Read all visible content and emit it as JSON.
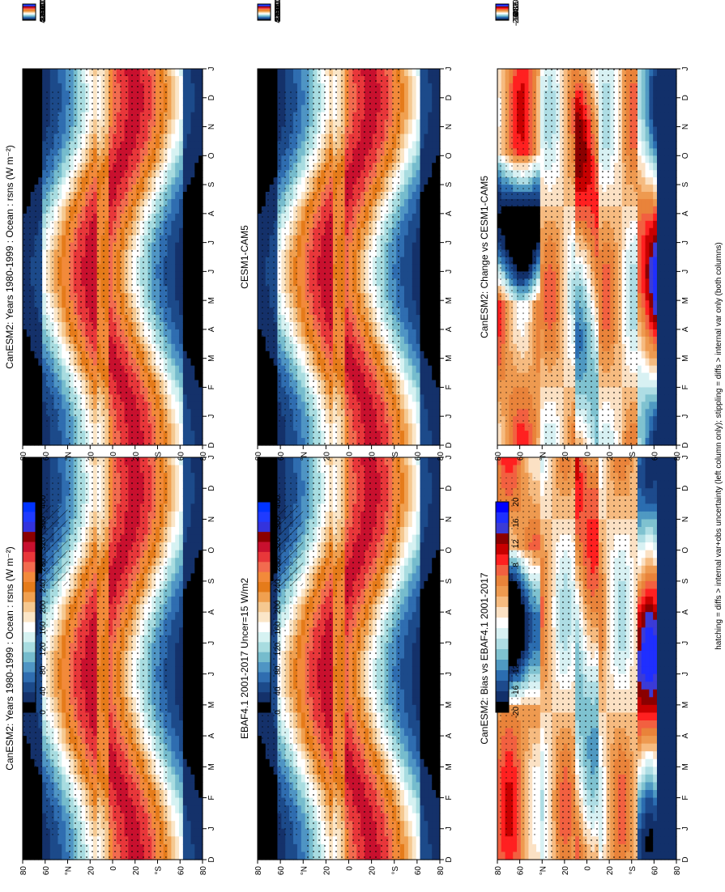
{
  "figure": {
    "footnote": "hatching = diffs > internal var+obs uncertainty (left column only); stippling = diffs > internal var only (both columns)"
  },
  "chart_data": [
    {
      "type": "heatmap",
      "title": "CanESM2: Years 1980-1999 : Ocean : rsns (W m⁻²)",
      "x_ticks": [
        "D",
        "J",
        "F",
        "M",
        "A",
        "M",
        "J",
        "J",
        "A",
        "S",
        "O",
        "N",
        "D",
        "J"
      ],
      "y_ticks": [
        "80",
        "60",
        "°N",
        "20",
        "0",
        "20",
        "°S",
        "60",
        "80"
      ],
      "colorbar": {
        "labels": [
          "400",
          "360",
          "320",
          "280",
          "240",
          "200",
          "160",
          "120",
          "80",
          "40",
          "0"
        ]
      },
      "overlays": [
        "stippling",
        "hatching"
      ]
    },
    {
      "type": "heatmap",
      "title": "CanESM2: Years 1980-1999 : Ocean : rsns (W m⁻²)",
      "x_ticks": [
        "D",
        "J",
        "F",
        "M",
        "A",
        "M",
        "J",
        "J",
        "A",
        "S",
        "O",
        "N",
        "D",
        "J"
      ],
      "y_ticks": [
        "80",
        "60",
        "°N",
        "20",
        "0",
        "20",
        "°S",
        "60",
        "80"
      ],
      "colorbar": {
        "labels": [
          "400",
          "360",
          "320",
          "280",
          "240",
          "200",
          "160",
          "120",
          "80",
          "40",
          "0"
        ]
      },
      "overlays": [
        "stippling"
      ]
    },
    {
      "type": "heatmap",
      "title": "EBAF4.1 2001-2017 Uncer=15 W/m2",
      "x_ticks": [
        "D",
        "J",
        "F",
        "M",
        "A",
        "M",
        "J",
        "J",
        "A",
        "S",
        "O",
        "N",
        "D",
        "J"
      ],
      "y_ticks": [
        "80",
        "60",
        "°N",
        "20",
        "0",
        "20",
        "°S",
        "60",
        "80"
      ],
      "colorbar": {
        "labels": [
          "400",
          "360",
          "320",
          "280",
          "240",
          "200",
          "160",
          "120",
          "80",
          "40",
          "0"
        ]
      },
      "overlays": [
        "stippling",
        "hatching"
      ]
    },
    {
      "type": "heatmap",
      "title": "CESM1-CAM5",
      "x_ticks": [
        "D",
        "J",
        "F",
        "M",
        "A",
        "M",
        "J",
        "J",
        "A",
        "S",
        "O",
        "N",
        "D",
        "J"
      ],
      "y_ticks": [
        "80",
        "60",
        "°N",
        "20",
        "0",
        "20",
        "°S",
        "60",
        "80"
      ],
      "colorbar": {
        "labels": [
          "400",
          "360",
          "320",
          "280",
          "240",
          "200",
          "160",
          "120",
          "80",
          "40",
          "0"
        ]
      },
      "overlays": [
        "stippling"
      ]
    },
    {
      "type": "heatmap",
      "title": "CanESM2: Bias vs EBAF4.1 2001-2017",
      "x_ticks": [
        "D",
        "J",
        "F",
        "M",
        "A",
        "M",
        "J",
        "J",
        "A",
        "S",
        "O",
        "N",
        "D",
        "J"
      ],
      "y_ticks": [
        "80",
        "60",
        "°N",
        "20",
        "0",
        "20",
        "°S",
        "60",
        "80"
      ],
      "colorbar": {
        "labels": [
          "20",
          "16",
          "12",
          "8",
          "4",
          "0",
          "-4",
          "-8",
          "-12",
          "-16",
          "-20"
        ]
      },
      "overlays": [
        "stippling"
      ]
    },
    {
      "type": "heatmap",
      "title": "CanESM2: Change vs CESM1-CAM5",
      "x_ticks": [
        "D",
        "J",
        "F",
        "M",
        "A",
        "M",
        "J",
        "J",
        "A",
        "S",
        "O",
        "N",
        "D",
        "J"
      ],
      "y_ticks": [
        "80",
        "60",
        "°N",
        "20",
        "0",
        "20",
        "°S",
        "60",
        "80"
      ],
      "colorbar": {
        "labels": [
          "20",
          "16",
          "12",
          "8",
          "",
          "4",
          "0",
          "-4",
          "-8",
          "-12",
          "-16",
          "-20"
        ]
      },
      "overlays": [
        "stippling"
      ]
    }
  ],
  "palettes": {
    "absolute": [
      "#0033ff",
      "#1f3bff",
      "#3333dd",
      "#8b0000",
      "#c8102e",
      "#e8373a",
      "#f26b4f",
      "#f28a3a",
      "#e57b1a",
      "#f0a050",
      "#f5c890",
      "#fbe6c8",
      "#ffffff",
      "#d6f2f2",
      "#a8dce0",
      "#76bccd",
      "#4f95c4",
      "#2f6db0",
      "#1c4a8a",
      "#14316a",
      "#000000"
    ],
    "diff": [
      "#0000ff",
      "#1f2fff",
      "#3b3bd6",
      "#8b0000",
      "#c80000",
      "#ff2020",
      "#f26040",
      "#e9833a",
      "#ee9a50",
      "#f6bb80",
      "#fbe1c4",
      "#ffffff",
      "#d8f1f3",
      "#aedde4",
      "#7fc2d0",
      "#4f99c2",
      "#2b6db0",
      "#1d4a8c",
      "#12306a",
      "#000000"
    ]
  }
}
